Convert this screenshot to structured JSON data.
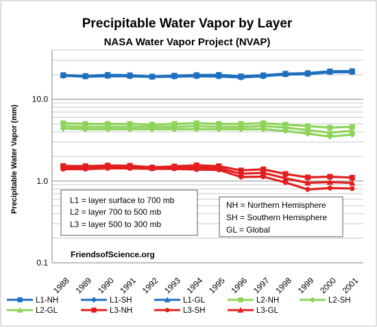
{
  "chart_data": {
    "type": "line",
    "title": "Precipitable Water Vapor  by Layer",
    "subtitle": "NASA Water Vapor Project (NVAP)",
    "ylabel": "Precipitable Water Vapor (mm)",
    "xlabel": "",
    "yscale": "log",
    "ylim": [
      0.1,
      40
    ],
    "ytick_labels": [
      "0.1",
      "1.0",
      "10.0"
    ],
    "ytick_values": [
      0.1,
      1.0,
      10.0
    ],
    "grid": true,
    "legend_position": "bottom",
    "x": [
      "1988",
      "1989",
      "1990",
      "1991",
      "1992",
      "1993",
      "1994",
      "1995",
      "1996",
      "1997",
      "1998",
      "1999",
      "2000",
      "2001"
    ],
    "annotations": {
      "layers_box": [
        "L1 = layer surface to 700  mb",
        "L2 = layer 700  to 500 mb",
        "L3 = layer 500  to 300 mb"
      ],
      "hemi_box": [
        "NH = Northern Hemisphere",
        "SH = Southern Hemisphere",
        "GL = Global"
      ],
      "source": "FriendsofScience.org"
    },
    "series": [
      {
        "name": "L1-NH",
        "color": "#1f6fbf",
        "marker": "square",
        "values": [
          19.8,
          19.3,
          19.9,
          19.7,
          19.0,
          19.5,
          19.8,
          19.9,
          19.1,
          19.7,
          20.6,
          20.9,
          22.0,
          22.1
        ]
      },
      {
        "name": "L1-SH",
        "color": "#1f6fbf",
        "marker": "diamond",
        "values": [
          19.4,
          18.9,
          19.2,
          19.1,
          18.8,
          18.9,
          19.1,
          19.0,
          18.5,
          19.1,
          20.1,
          20.3,
          21.4,
          21.5
        ]
      },
      {
        "name": "L1-GL",
        "color": "#1f6fbf",
        "marker": "triangle",
        "values": [
          19.6,
          19.1,
          19.5,
          19.4,
          18.9,
          19.2,
          19.4,
          19.4,
          18.8,
          19.4,
          20.3,
          20.6,
          21.7,
          21.8
        ]
      },
      {
        "name": "L2-NH",
        "color": "#8ed35a",
        "marker": "square",
        "values": [
          5.1,
          5.0,
          5.0,
          5.0,
          4.9,
          5.0,
          5.1,
          5.0,
          5.0,
          5.1,
          4.9,
          4.7,
          4.5,
          4.6
        ]
      },
      {
        "name": "L2-SH",
        "color": "#8ed35a",
        "marker": "diamond",
        "values": [
          4.4,
          4.3,
          4.3,
          4.3,
          4.3,
          4.3,
          4.3,
          4.3,
          4.3,
          4.3,
          4.1,
          3.8,
          3.5,
          3.7
        ]
      },
      {
        "name": "L2-GL",
        "color": "#8ed35a",
        "marker": "triangle",
        "values": [
          4.7,
          4.6,
          4.6,
          4.6,
          4.6,
          4.6,
          4.7,
          4.6,
          4.6,
          4.7,
          4.5,
          4.2,
          3.9,
          4.1
        ]
      },
      {
        "name": "L3-NH",
        "color": "#e21e1e",
        "marker": "square",
        "values": [
          1.53,
          1.52,
          1.55,
          1.54,
          1.47,
          1.51,
          1.56,
          1.52,
          1.35,
          1.39,
          1.22,
          1.11,
          1.13,
          1.1
        ]
      },
      {
        "name": "L3-SH",
        "color": "#e21e1e",
        "marker": "circle",
        "values": [
          1.4,
          1.4,
          1.43,
          1.43,
          1.41,
          1.41,
          1.38,
          1.37,
          1.12,
          1.13,
          0.96,
          0.79,
          0.82,
          0.81
        ]
      },
      {
        "name": "L3-GL",
        "color": "#e21e1e",
        "marker": "triangle",
        "values": [
          1.46,
          1.46,
          1.49,
          1.48,
          1.44,
          1.46,
          1.46,
          1.44,
          1.23,
          1.26,
          1.08,
          0.95,
          0.97,
          0.95
        ]
      }
    ]
  }
}
